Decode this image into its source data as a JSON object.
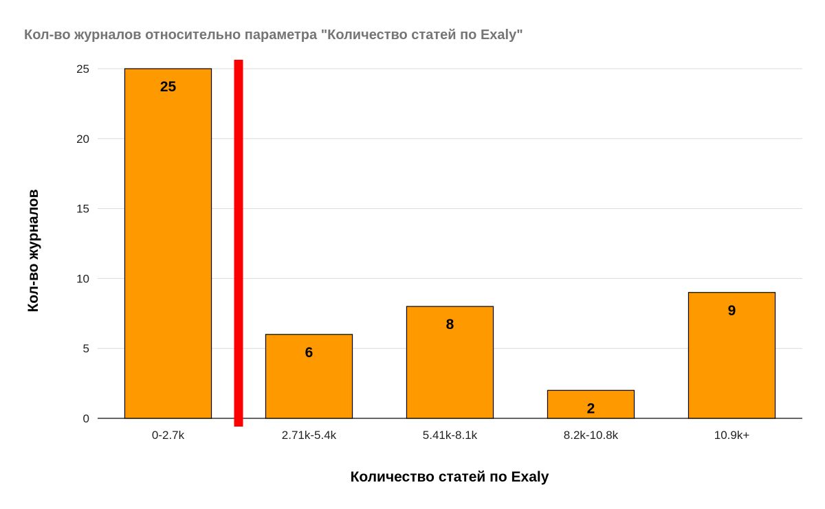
{
  "chart_data": {
    "type": "bar",
    "title": "Кол-во журналов относительно параметра \"Количество статей по Exaly\"",
    "xlabel": "Количество статей по Exaly",
    "ylabel": "Кол-во журналов",
    "categories": [
      "0-2.7k",
      "2.71k-5.4k",
      "5.41k-8.1k",
      "8.2k-10.8k",
      "10.9k+"
    ],
    "values": [
      25,
      6,
      8,
      2,
      9
    ],
    "data_labels": [
      "25",
      "6",
      "8",
      "2",
      "9"
    ],
    "ylim": [
      0,
      25
    ],
    "y_ticks": [
      0,
      5,
      10,
      15,
      20,
      25
    ],
    "y_tick_labels": [
      "0",
      "5",
      "10",
      "15",
      "20",
      "25"
    ],
    "grid": true,
    "legend": "none",
    "colors": {
      "bar_fill": "#ff9900",
      "bar_stroke": "#000000",
      "marker_line": "#ff0000",
      "gridline": "#d9d9d9",
      "baseline": "#333333"
    },
    "annotations": [
      {
        "type": "vertical-line",
        "position": "between categories 0-2.7k and 2.71k-5.4k",
        "color": "#ff0000"
      }
    ]
  }
}
